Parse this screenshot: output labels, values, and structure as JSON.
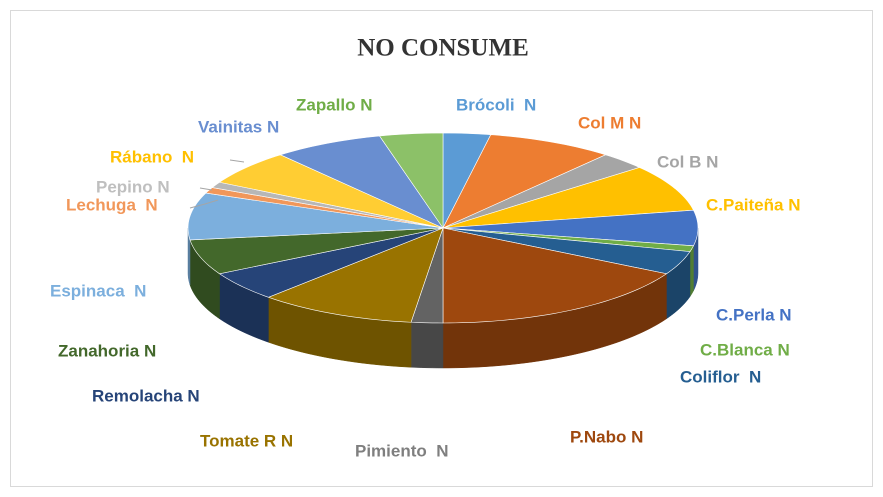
{
  "chart_data": {
    "type": "pie3d",
    "title": "NO CONSUME",
    "categories": [
      "Brócoli  N",
      "Col M N",
      "Col B N",
      "C.Paiteña N",
      "C.Perla N",
      "C.Blanca N",
      "Coliflor  N",
      "P.Nabo N",
      "Pimiento  N",
      "Tomate R N",
      "Remolacha N",
      "Zanahoria N",
      "Espinaca  N",
      "Lechuga  N",
      "Pepino N",
      "Rábano  N",
      "Vainitas N",
      "Zapallo N"
    ],
    "values": [
      3,
      8,
      3,
      8,
      6,
      1,
      4,
      17,
      2,
      10,
      5,
      6,
      8,
      1,
      1,
      6,
      7,
      4
    ],
    "colors": [
      "#5b9bd5",
      "#ed7d31",
      "#a5a5a5",
      "#ffc000",
      "#4472c4",
      "#70ad47",
      "#255e91",
      "#9e480e",
      "#636363",
      "#997300",
      "#264478",
      "#43682b",
      "#7cafdd",
      "#f1975a",
      "#b7b7b7",
      "#ffcd33",
      "#698ed0",
      "#8cc168"
    ]
  }
}
